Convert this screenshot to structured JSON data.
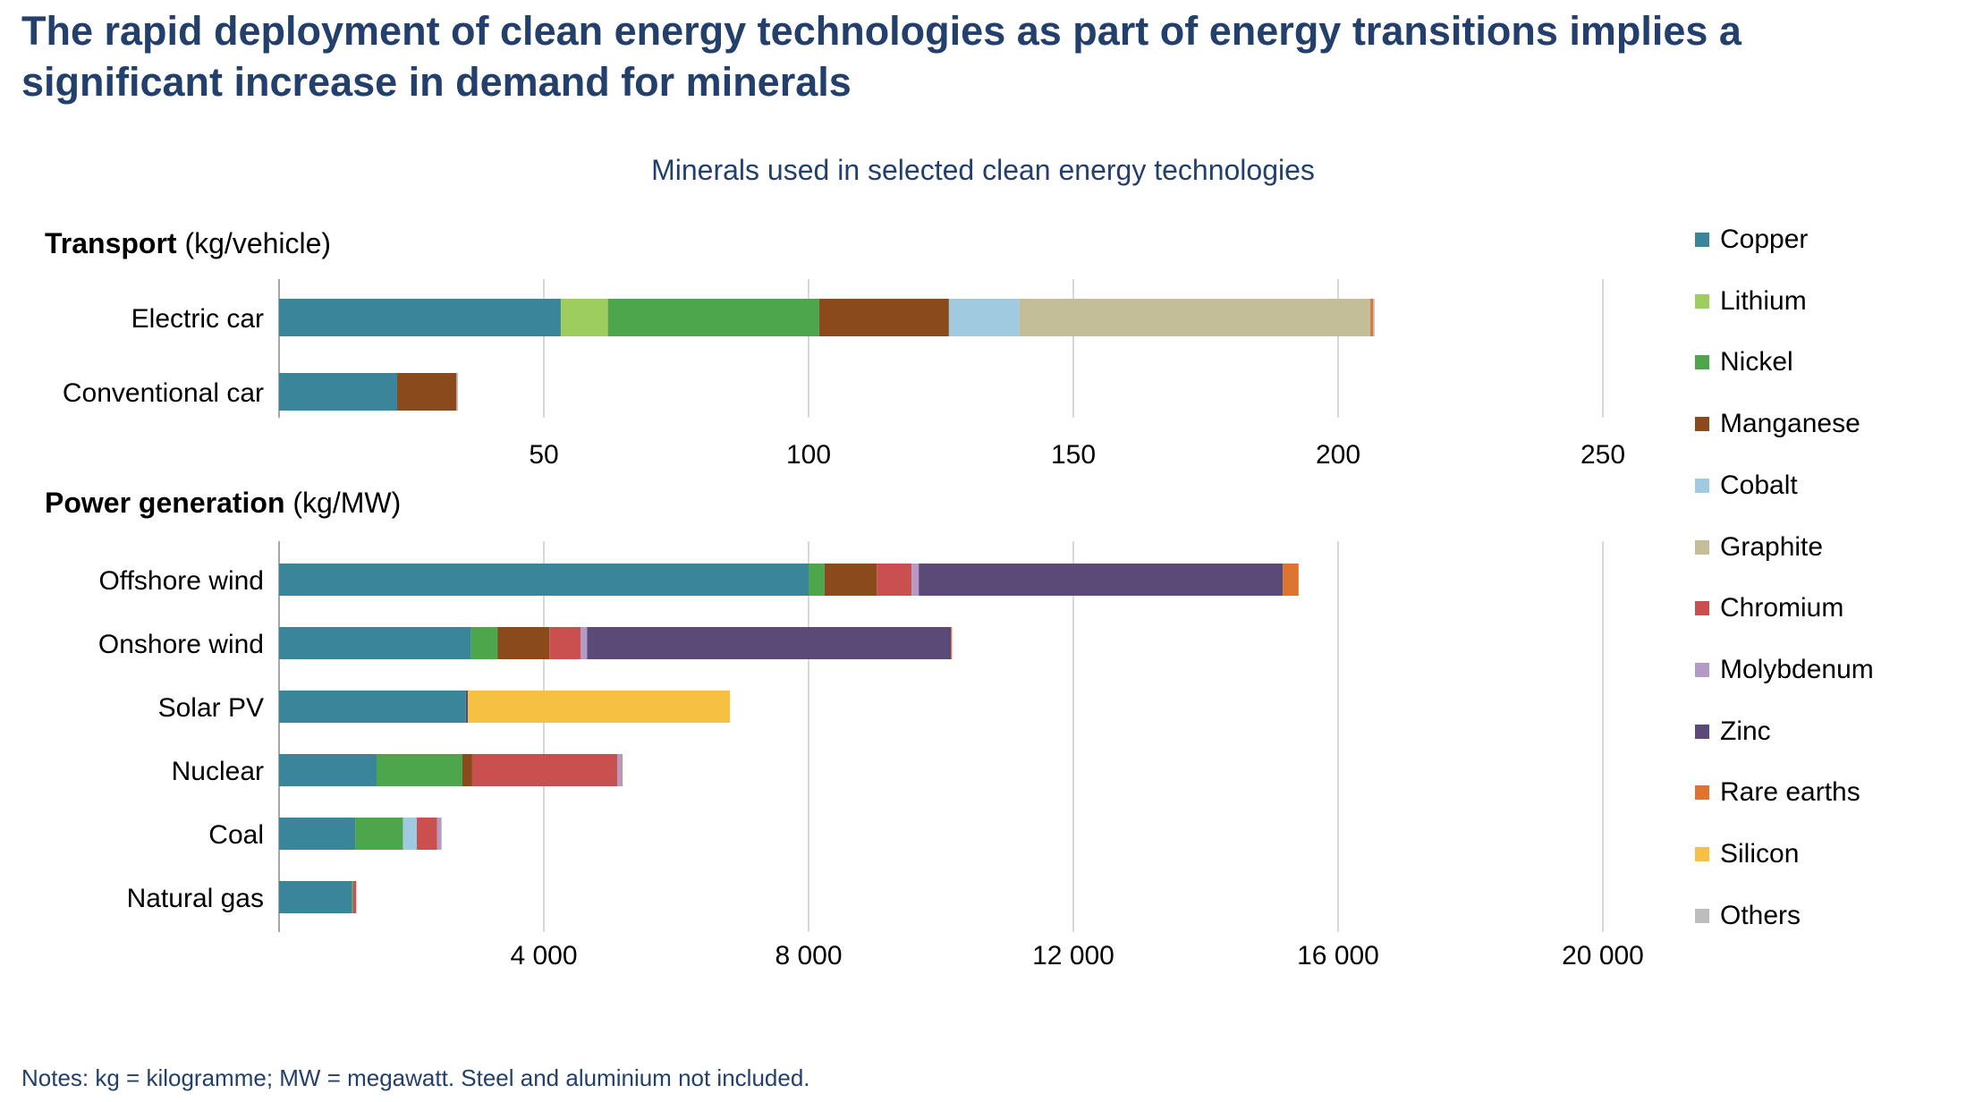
{
  "title": "The rapid deployment of clean energy technologies as part of energy transitions implies a significant increase in demand for minerals",
  "subtitle": "Minerals used in selected clean energy technologies",
  "notes": "Notes: kg = kilogramme; MW = megawatt. Steel and aluminium not included.",
  "chart_data": [
    {
      "type": "bar",
      "orientation": "horizontal",
      "stacked": true,
      "panel_title": "Transport",
      "panel_unit": " (kg/vehicle)",
      "categories": [
        "Electric car",
        "Conventional car"
      ],
      "xticks": [
        50,
        100,
        150,
        200,
        250
      ],
      "xlim": [
        0,
        250
      ],
      "grid": true,
      "series": [
        {
          "name": "Copper",
          "values": [
            53.2,
            22.3
          ]
        },
        {
          "name": "Lithium",
          "values": [
            8.9,
            0
          ]
        },
        {
          "name": "Nickel",
          "values": [
            39.9,
            0
          ]
        },
        {
          "name": "Manganese",
          "values": [
            24.5,
            11.2
          ]
        },
        {
          "name": "Cobalt",
          "values": [
            13.3,
            0
          ]
        },
        {
          "name": "Graphite",
          "values": [
            66.3,
            0
          ]
        },
        {
          "name": "Chromium",
          "values": [
            0,
            0
          ]
        },
        {
          "name": "Molybdenum",
          "values": [
            0,
            0
          ]
        },
        {
          "name": "Zinc",
          "values": [
            0,
            0
          ]
        },
        {
          "name": "Rare earths",
          "values": [
            0.5,
            0
          ]
        },
        {
          "name": "Silicon",
          "values": [
            0,
            0
          ]
        },
        {
          "name": "Others",
          "values": [
            0.3,
            0.3
          ]
        }
      ]
    },
    {
      "type": "bar",
      "orientation": "horizontal",
      "stacked": true,
      "panel_title": "Power generation",
      "panel_unit": " (kg/MW)",
      "categories": [
        "Offshore wind",
        "Onshore wind",
        "Solar PV",
        "Nuclear",
        "Coal",
        "Natural gas"
      ],
      "xticks": [
        4000,
        8000,
        12000,
        16000,
        20000
      ],
      "xtick_labels": [
        "4 000",
        "8 000",
        "12 000",
        "16 000",
        "20 000"
      ],
      "xlim": [
        0,
        20000
      ],
      "grid": true,
      "series": [
        {
          "name": "Copper",
          "values": [
            8000,
            2900,
            2822,
            1473,
            1150,
            1100
          ]
        },
        {
          "name": "Lithium",
          "values": [
            0,
            0,
            0,
            0,
            0,
            0
          ]
        },
        {
          "name": "Nickel",
          "values": [
            240,
            404,
            1.3,
            1297,
            721,
            16
          ]
        },
        {
          "name": "Manganese",
          "values": [
            790,
            780,
            0,
            148,
            0,
            0
          ]
        },
        {
          "name": "Cobalt",
          "values": [
            0,
            0,
            0,
            0,
            210,
            2
          ]
        },
        {
          "name": "Graphite",
          "values": [
            0,
            0,
            0,
            0,
            0,
            0
          ]
        },
        {
          "name": "Chromium",
          "values": [
            525,
            470,
            0,
            2190,
            308,
            48
          ]
        },
        {
          "name": "Molybdenum",
          "values": [
            109,
            99,
            0,
            70,
            66,
            0
          ]
        },
        {
          "name": "Zinc",
          "values": [
            5500,
            5500,
            30,
            0,
            0,
            0
          ]
        },
        {
          "name": "Rare earths",
          "values": [
            239,
            14,
            0,
            0.5,
            0,
            0
          ]
        },
        {
          "name": "Silicon",
          "values": [
            0,
            0,
            3960,
            0,
            0,
            0
          ]
        },
        {
          "name": "Others",
          "values": [
            0,
            0,
            0,
            0,
            0,
            0
          ]
        }
      ]
    }
  ],
  "legend": {
    "placement": "right",
    "items": [
      {
        "name": "Copper",
        "color": "#3a8599"
      },
      {
        "name": "Lithium",
        "color": "#9dcc5f"
      },
      {
        "name": "Nickel",
        "color": "#4ea64c"
      },
      {
        "name": "Manganese",
        "color": "#8b4a1c"
      },
      {
        "name": "Cobalt",
        "color": "#9fcadf"
      },
      {
        "name": "Graphite",
        "color": "#c3bd98"
      },
      {
        "name": "Chromium",
        "color": "#c9504f"
      },
      {
        "name": "Molybdenum",
        "color": "#b39bc6"
      },
      {
        "name": "Zinc",
        "color": "#5b4a77"
      },
      {
        "name": "Rare earths",
        "color": "#dd7531"
      },
      {
        "name": "Silicon",
        "color": "#f6c142"
      },
      {
        "name": "Others",
        "color": "#bdbdbd"
      }
    ]
  }
}
